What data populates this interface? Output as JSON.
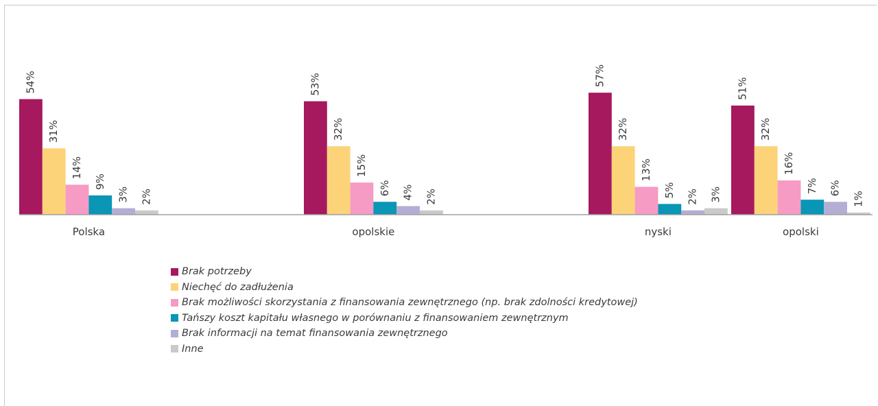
{
  "chart_data": {
    "type": "bar",
    "title": "",
    "xlabel": "",
    "ylabel": "",
    "ylim": [
      0,
      60
    ],
    "grid": false,
    "legend_position": "bottom",
    "categories": [
      "Polska",
      "opolskie",
      "nyski",
      "opolski"
    ],
    "series": [
      {
        "name": "Brak potrzeby",
        "color": "#A6195E",
        "values": [
          54,
          53,
          57,
          51
        ]
      },
      {
        "name": "Niechęć do zadłużenia",
        "color": "#FDD37A",
        "values": [
          31,
          32,
          32,
          32
        ]
      },
      {
        "name": "Brak możliwości skorzystania z finansowania zewnętrznego (np. brak zdolności kredytowej)",
        "color": "#F59BC4",
        "values": [
          14,
          15,
          13,
          16
        ]
      },
      {
        "name": "Tańszy koszt kapitału własnego w porównaniu z finansowaniem zewnętrznym",
        "color": "#0A96B5",
        "values": [
          9,
          6,
          5,
          7
        ]
      },
      {
        "name": "Brak informacji na temat finansowania zewnętrznego",
        "color": "#B3AED4",
        "values": [
          3,
          4,
          2,
          6
        ]
      },
      {
        "name": "Inne",
        "color": "#CACACA",
        "values": [
          2,
          2,
          3,
          1
        ]
      }
    ],
    "value_labels": [
      [
        "54%",
        "53%",
        "57%",
        "51%"
      ],
      [
        "31%",
        "32%",
        "32%",
        "32%"
      ],
      [
        "14%",
        "15%",
        "13%",
        "16%"
      ],
      [
        "9%",
        "6%",
        "5%",
        "7%"
      ],
      [
        "3%",
        "4%",
        "2%",
        "6%"
      ],
      [
        "2%",
        "2%",
        "3%",
        "1%"
      ]
    ]
  }
}
